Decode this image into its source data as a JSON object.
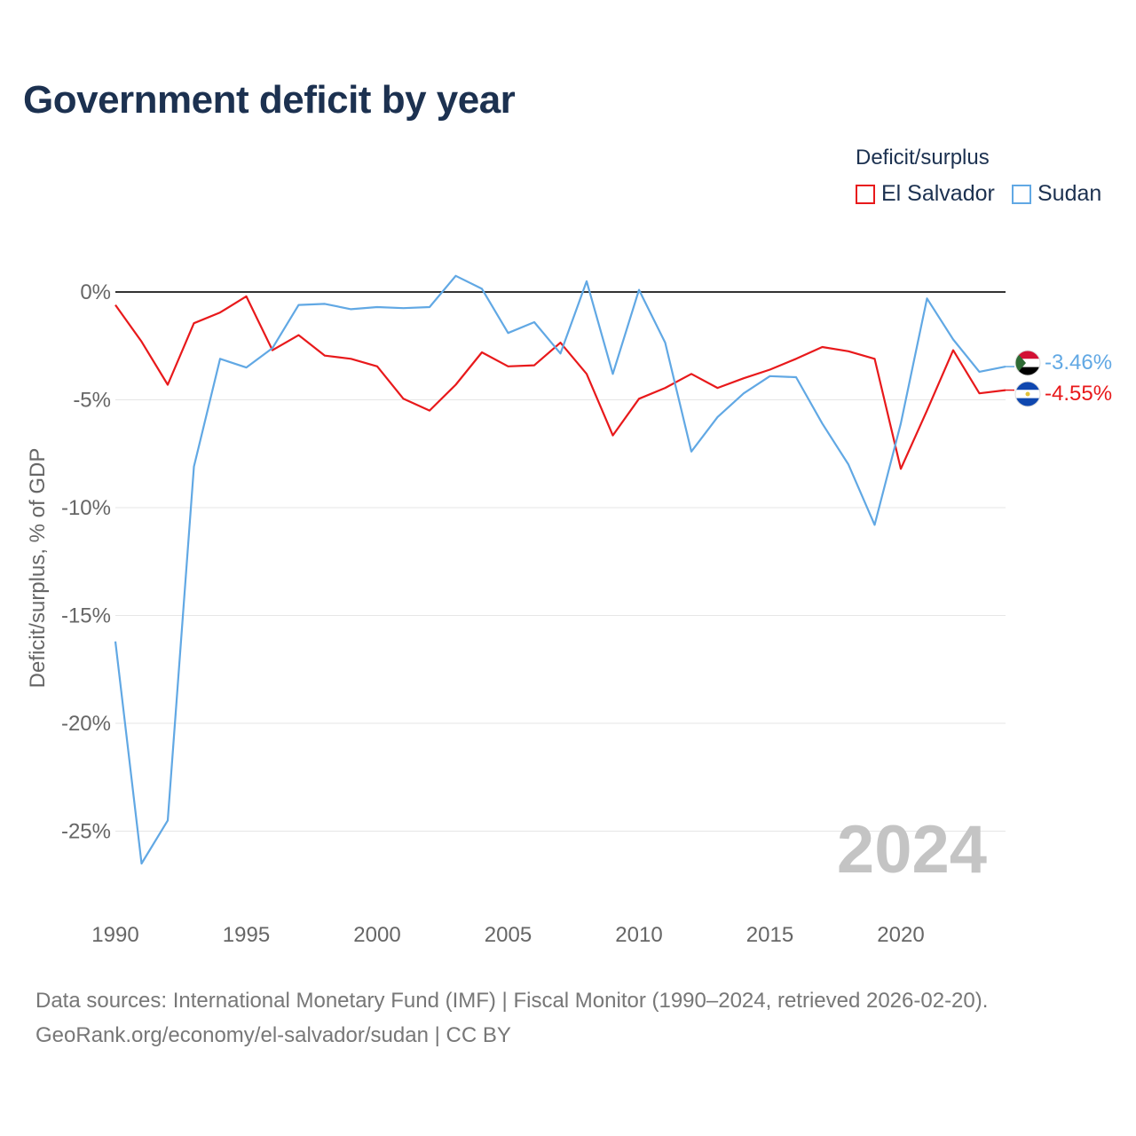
{
  "title": "Government deficit by year",
  "legend": {
    "title": "Deficit/surplus",
    "items": [
      {
        "name": "El Salvador",
        "color": "#e8191b"
      },
      {
        "name": "Sudan",
        "color": "#61a8e4"
      }
    ]
  },
  "source": {
    "line1": "Data sources: International Monetary Fund (IMF) | Fiscal Monitor (1990–2024, retrieved 2026-02-20).",
    "line2": "GeoRank.org/economy/el-salvador/sudan | CC BY"
  },
  "chart_data": {
    "type": "line",
    "title": "Government deficit by year",
    "xlabel": "",
    "ylabel": "Deficit/surplus, % of GDP",
    "xlim": [
      1990,
      2024
    ],
    "ylim": [
      -28,
      1
    ],
    "x_ticks": [
      1990,
      1995,
      2000,
      2005,
      2010,
      2015,
      2020
    ],
    "y_ticks": [
      {
        "value": 0,
        "label": "0%"
      },
      {
        "value": -5,
        "label": "-5%"
      },
      {
        "value": -10,
        "label": "-10%"
      },
      {
        "value": -15,
        "label": "-15%"
      },
      {
        "value": -20,
        "label": "-20%"
      },
      {
        "value": -25,
        "label": "-25%"
      }
    ],
    "zero_line": true,
    "watermark_year": "2024",
    "x": [
      1990,
      1991,
      1992,
      1993,
      1994,
      1995,
      1996,
      1997,
      1998,
      1999,
      2000,
      2001,
      2002,
      2003,
      2004,
      2005,
      2006,
      2007,
      2008,
      2009,
      2010,
      2011,
      2012,
      2013,
      2014,
      2015,
      2016,
      2017,
      2018,
      2019,
      2020,
      2021,
      2022,
      2023,
      2024
    ],
    "series": [
      {
        "name": "El Salvador",
        "color": "#e8191b",
        "end_label": "-4.55%",
        "values": [
          -0.6,
          -2.3,
          -4.3,
          -1.45,
          -0.95,
          -0.2,
          -2.7,
          -2.0,
          -2.95,
          -3.1,
          -3.45,
          -4.95,
          -5.5,
          -4.3,
          -2.8,
          -3.45,
          -3.4,
          -2.35,
          -3.8,
          -6.65,
          -4.95,
          -4.45,
          -3.8,
          -4.45,
          -4.0,
          -3.6,
          -3.1,
          -2.55,
          -2.75,
          -3.1,
          -8.2,
          -5.5,
          -2.7,
          -4.7,
          -4.55
        ]
      },
      {
        "name": "Sudan",
        "color": "#61a8e4",
        "end_label": "-3.46%",
        "values": [
          -16.2,
          -26.5,
          -24.5,
          -8.1,
          -3.1,
          -3.5,
          -2.6,
          -0.6,
          -0.55,
          -0.8,
          -0.7,
          -0.75,
          -0.7,
          0.75,
          0.15,
          -1.9,
          -1.4,
          -2.85,
          0.5,
          -3.8,
          0.1,
          -2.35,
          -7.4,
          -5.8,
          -4.7,
          -3.9,
          -3.95,
          -6.1,
          -8.0,
          -10.8,
          -6.1,
          -0.3,
          -2.2,
          -3.7,
          -3.46
        ]
      }
    ]
  }
}
